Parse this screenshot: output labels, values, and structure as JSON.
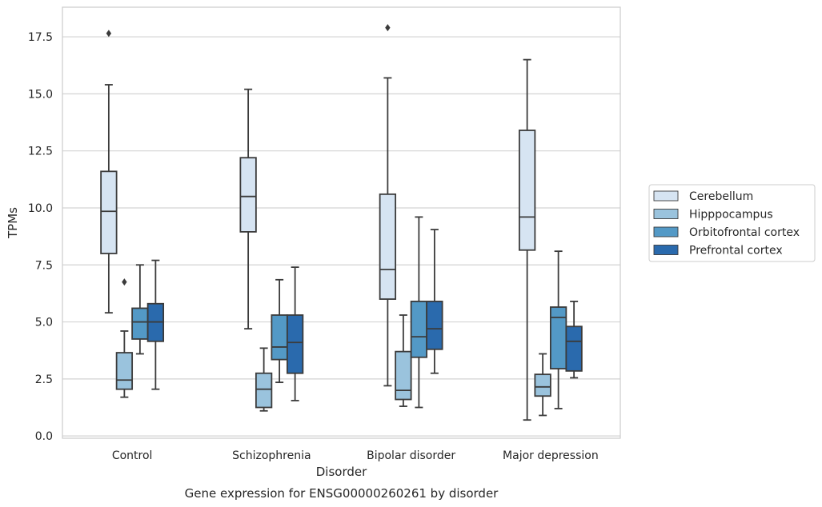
{
  "chart_data": {
    "type": "box",
    "title": "",
    "caption": "Gene expression for ENSG00000260261 by disorder",
    "xlabel": "Disorder",
    "ylabel": "TPMs",
    "ylim": [
      -0.1,
      18.8
    ],
    "yticks": [
      0.0,
      2.5,
      5.0,
      7.5,
      10.0,
      12.5,
      15.0,
      17.5
    ],
    "ytick_labels": [
      "0.0",
      "2.5",
      "5.0",
      "7.5",
      "10.0",
      "12.5",
      "15.0",
      "17.5"
    ],
    "grid": "horizontal",
    "legend_position": "right",
    "categories": [
      "Control",
      "Schizophrenia",
      "Bipolar disorder",
      "Major depression"
    ],
    "series": [
      {
        "name": "Cerebellum",
        "color": "#d6e4f2",
        "boxes": [
          {
            "whislo": 5.4,
            "q1": 8.0,
            "med": 9.85,
            "q3": 11.6,
            "whishi": 15.4,
            "fliers": [
              17.65
            ]
          },
          {
            "whislo": 4.7,
            "q1": 8.95,
            "med": 10.5,
            "q3": 12.2,
            "whishi": 15.2,
            "fliers": []
          },
          {
            "whislo": 2.2,
            "q1": 6.0,
            "med": 7.3,
            "q3": 10.6,
            "whishi": 15.7,
            "fliers": [
              17.9
            ]
          },
          {
            "whislo": 0.7,
            "q1": 8.15,
            "med": 9.6,
            "q3": 13.4,
            "whishi": 16.5,
            "fliers": []
          }
        ]
      },
      {
        "name": "Hipppocampus",
        "color": "#9ac3dd",
        "boxes": [
          {
            "whislo": 1.7,
            "q1": 2.05,
            "med": 2.45,
            "q3": 3.65,
            "whishi": 4.6,
            "fliers": [
              6.75
            ]
          },
          {
            "whislo": 1.1,
            "q1": 1.25,
            "med": 2.05,
            "q3": 2.75,
            "whishi": 3.85,
            "fliers": []
          },
          {
            "whislo": 1.3,
            "q1": 1.6,
            "med": 2.0,
            "q3": 3.7,
            "whishi": 5.3,
            "fliers": []
          },
          {
            "whislo": 0.9,
            "q1": 1.75,
            "med": 2.15,
            "q3": 2.7,
            "whishi": 3.6,
            "fliers": []
          }
        ]
      },
      {
        "name": "Orbitofrontal cortex",
        "color": "#5399c6",
        "boxes": [
          {
            "whislo": 3.6,
            "q1": 4.25,
            "med": 5.0,
            "q3": 5.6,
            "whishi": 7.5,
            "fliers": []
          },
          {
            "whislo": 2.35,
            "q1": 3.35,
            "med": 3.9,
            "q3": 5.3,
            "whishi": 6.85,
            "fliers": []
          },
          {
            "whislo": 1.25,
            "q1": 3.45,
            "med": 4.35,
            "q3": 5.9,
            "whishi": 9.6,
            "fliers": []
          },
          {
            "whislo": 1.2,
            "q1": 2.95,
            "med": 5.2,
            "q3": 5.65,
            "whishi": 8.1,
            "fliers": []
          }
        ]
      },
      {
        "name": "Prefrontal cortex",
        "color": "#2a6aad",
        "boxes": [
          {
            "whislo": 2.05,
            "q1": 4.15,
            "med": 5.0,
            "q3": 5.8,
            "whishi": 7.7,
            "fliers": []
          },
          {
            "whislo": 1.55,
            "q1": 2.75,
            "med": 4.1,
            "q3": 5.3,
            "whishi": 7.4,
            "fliers": []
          },
          {
            "whislo": 2.75,
            "q1": 3.8,
            "med": 4.7,
            "q3": 5.9,
            "whishi": 9.05,
            "fliers": []
          },
          {
            "whislo": 2.55,
            "q1": 2.85,
            "med": 4.15,
            "q3": 4.8,
            "whishi": 5.9,
            "fliers": []
          }
        ]
      }
    ]
  }
}
